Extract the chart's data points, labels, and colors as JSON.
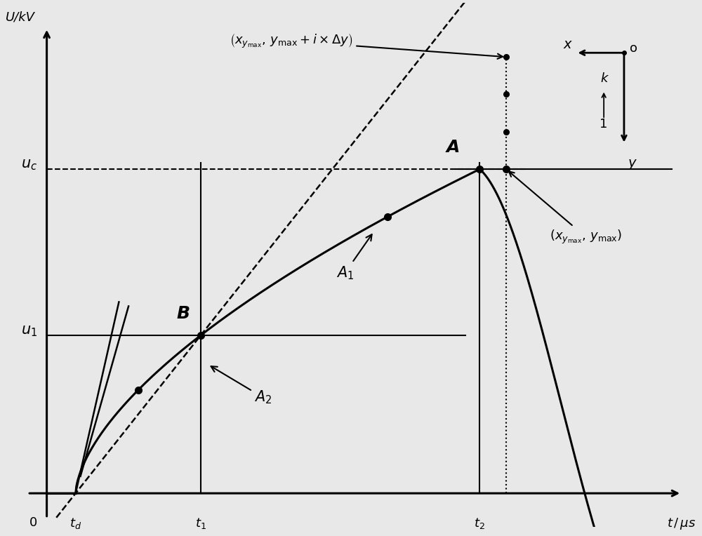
{
  "figsize": [
    10.0,
    7.64
  ],
  "dpi": 100,
  "bg_color": "#e8e8e8",
  "axes_bg": "#e8e8e8",
  "td": 0.6,
  "t1": 3.2,
  "t2": 9.0,
  "uc": 0.78,
  "u1": 0.38,
  "xlim": [
    -0.5,
    13.5
  ],
  "ylim": [
    -0.08,
    1.18
  ]
}
